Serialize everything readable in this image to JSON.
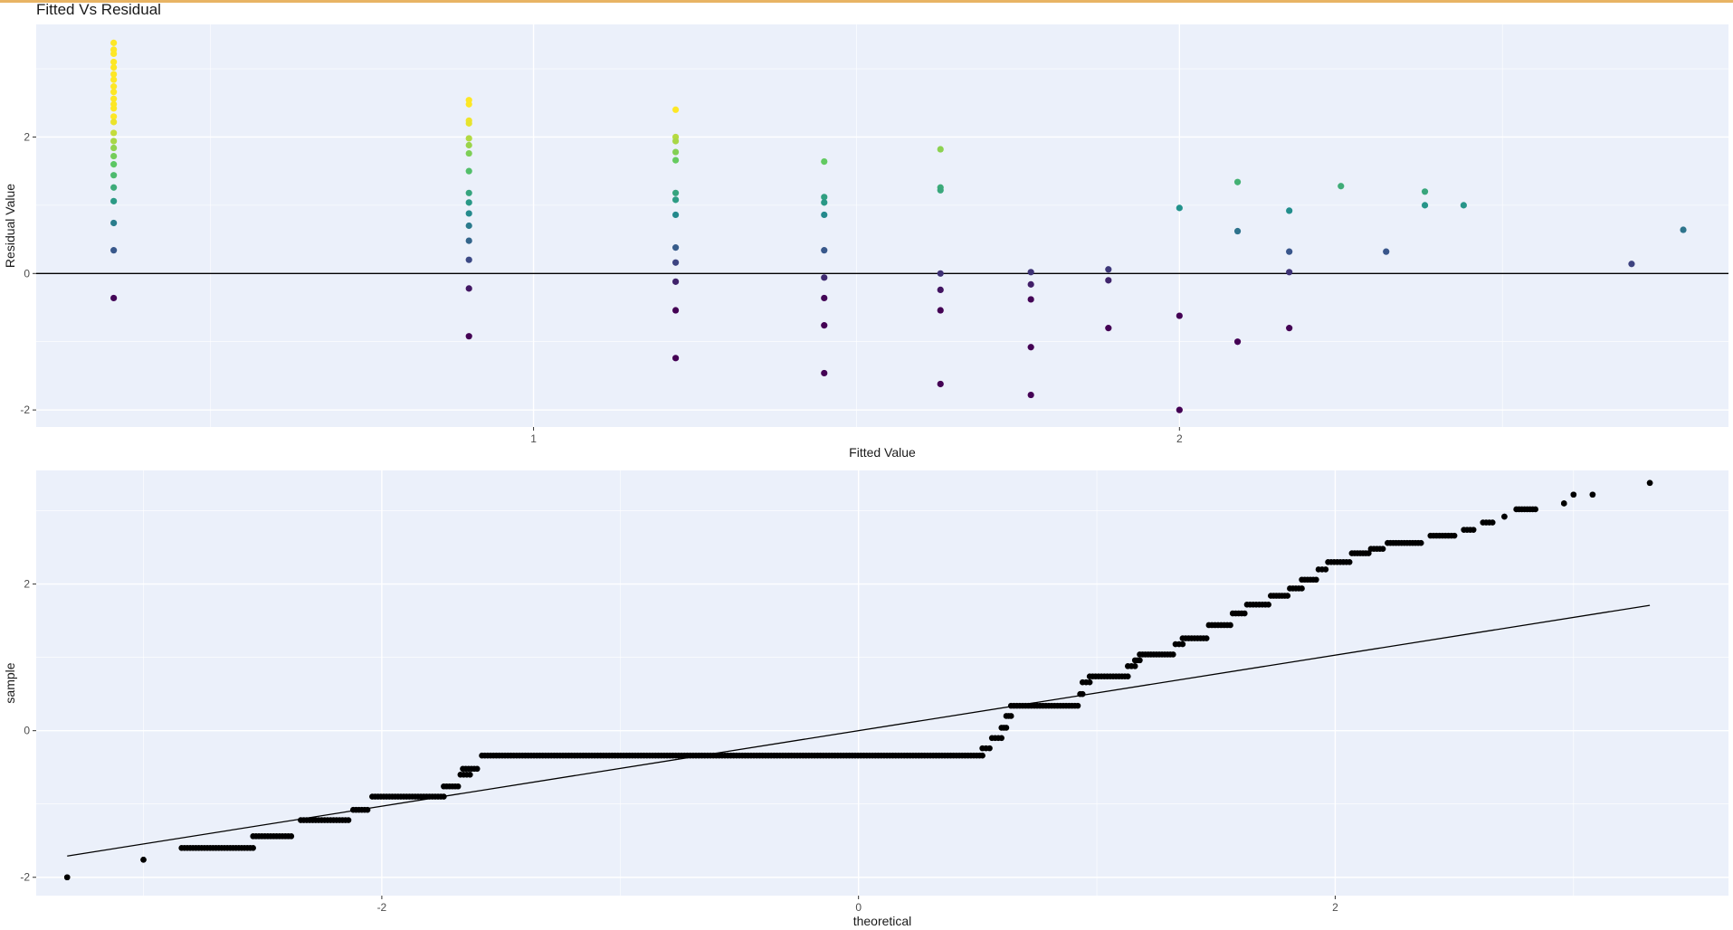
{
  "chart_data": [
    {
      "type": "scatter",
      "title": "Fitted Vs Residual",
      "xlabel": "Fitted Value",
      "ylabel": "Residual Value",
      "xlim": [
        0.23,
        2.85
      ],
      "ylim": [
        -2.25,
        3.65
      ],
      "x_ticks": [
        1,
        2
      ],
      "x_ticklabels": [
        "1",
        "2"
      ],
      "y_ticks": [
        -2,
        0,
        2
      ],
      "y_ticklabels": [
        "-2",
        "0",
        "2"
      ],
      "hline": 0,
      "grid": true,
      "background": "#ebf0fa",
      "colors": {
        "positive_high": "#fde725",
        "mid": "#5ec962",
        "teal": "#21918c",
        "low": "#440154",
        "reference_line": "#000000"
      },
      "points": [
        {
          "x": 0.35,
          "y": 3.38
        },
        {
          "x": 0.35,
          "y": 3.28
        },
        {
          "x": 0.35,
          "y": 3.22
        },
        {
          "x": 0.35,
          "y": 3.1
        },
        {
          "x": 0.35,
          "y": 3.02
        },
        {
          "x": 0.35,
          "y": 2.92
        },
        {
          "x": 0.35,
          "y": 2.84
        },
        {
          "x": 0.35,
          "y": 2.74
        },
        {
          "x": 0.35,
          "y": 2.66
        },
        {
          "x": 0.35,
          "y": 2.56
        },
        {
          "x": 0.35,
          "y": 2.48
        },
        {
          "x": 0.35,
          "y": 2.42
        },
        {
          "x": 0.35,
          "y": 2.3
        },
        {
          "x": 0.35,
          "y": 2.22
        },
        {
          "x": 0.35,
          "y": 2.06
        },
        {
          "x": 0.35,
          "y": 1.94
        },
        {
          "x": 0.35,
          "y": 1.84
        },
        {
          "x": 0.35,
          "y": 1.72
        },
        {
          "x": 0.35,
          "y": 1.6
        },
        {
          "x": 0.35,
          "y": 1.44
        },
        {
          "x": 0.35,
          "y": 1.26
        },
        {
          "x": 0.35,
          "y": 1.06
        },
        {
          "x": 0.35,
          "y": 0.74
        },
        {
          "x": 0.35,
          "y": 0.34
        },
        {
          "x": 0.35,
          "y": -0.36
        },
        {
          "x": 0.9,
          "y": 2.54
        },
        {
          "x": 0.9,
          "y": 2.48
        },
        {
          "x": 0.9,
          "y": 2.24
        },
        {
          "x": 0.9,
          "y": 2.2
        },
        {
          "x": 0.9,
          "y": 1.98
        },
        {
          "x": 0.9,
          "y": 1.88
        },
        {
          "x": 0.9,
          "y": 1.76
        },
        {
          "x": 0.9,
          "y": 1.5
        },
        {
          "x": 0.9,
          "y": 1.18
        },
        {
          "x": 0.9,
          "y": 1.04
        },
        {
          "x": 0.9,
          "y": 0.88
        },
        {
          "x": 0.9,
          "y": 0.7
        },
        {
          "x": 0.9,
          "y": 0.48
        },
        {
          "x": 0.9,
          "y": 0.2
        },
        {
          "x": 0.9,
          "y": -0.22
        },
        {
          "x": 0.9,
          "y": -0.92
        },
        {
          "x": 1.22,
          "y": 2.4
        },
        {
          "x": 1.22,
          "y": 2.0
        },
        {
          "x": 1.22,
          "y": 1.94
        },
        {
          "x": 1.22,
          "y": 1.78
        },
        {
          "x": 1.22,
          "y": 1.66
        },
        {
          "x": 1.22,
          "y": 1.18
        },
        {
          "x": 1.22,
          "y": 1.08
        },
        {
          "x": 1.22,
          "y": 0.86
        },
        {
          "x": 1.22,
          "y": 0.38
        },
        {
          "x": 1.22,
          "y": 0.16
        },
        {
          "x": 1.22,
          "y": -0.12
        },
        {
          "x": 1.22,
          "y": -0.54
        },
        {
          "x": 1.22,
          "y": -1.24
        },
        {
          "x": 1.45,
          "y": 1.64
        },
        {
          "x": 1.45,
          "y": 1.12
        },
        {
          "x": 1.45,
          "y": 1.04
        },
        {
          "x": 1.45,
          "y": 0.86
        },
        {
          "x": 1.45,
          "y": 0.34
        },
        {
          "x": 1.45,
          "y": -0.06
        },
        {
          "x": 1.45,
          "y": -0.36
        },
        {
          "x": 1.45,
          "y": -0.76
        },
        {
          "x": 1.45,
          "y": -1.46
        },
        {
          "x": 1.63,
          "y": 1.82
        },
        {
          "x": 1.63,
          "y": 1.26
        },
        {
          "x": 1.63,
          "y": 1.22
        },
        {
          "x": 1.63,
          "y": 0.0
        },
        {
          "x": 1.63,
          "y": -0.24
        },
        {
          "x": 1.63,
          "y": -0.54
        },
        {
          "x": 1.63,
          "y": -1.62
        },
        {
          "x": 1.77,
          "y": 0.02
        },
        {
          "x": 1.77,
          "y": -0.16
        },
        {
          "x": 1.77,
          "y": -0.38
        },
        {
          "x": 1.77,
          "y": -1.08
        },
        {
          "x": 1.77,
          "y": -1.78
        },
        {
          "x": 1.89,
          "y": 0.06
        },
        {
          "x": 1.89,
          "y": -0.1
        },
        {
          "x": 1.89,
          "y": -0.8
        },
        {
          "x": 2.0,
          "y": 0.96
        },
        {
          "x": 2.0,
          "y": -0.62
        },
        {
          "x": 2.0,
          "y": -2.0
        },
        {
          "x": 2.09,
          "y": 1.34
        },
        {
          "x": 2.09,
          "y": 0.62
        },
        {
          "x": 2.09,
          "y": -1.0
        },
        {
          "x": 2.17,
          "y": 0.92
        },
        {
          "x": 2.17,
          "y": 0.32
        },
        {
          "x": 2.17,
          "y": 0.02
        },
        {
          "x": 2.17,
          "y": -0.8
        },
        {
          "x": 2.25,
          "y": 1.28
        },
        {
          "x": 2.32,
          "y": 0.32
        },
        {
          "x": 2.38,
          "y": 1.2
        },
        {
          "x": 2.38,
          "y": 1.0
        },
        {
          "x": 2.44,
          "y": 1.0
        },
        {
          "x": 2.7,
          "y": 0.14
        },
        {
          "x": 2.78,
          "y": 0.64
        }
      ]
    },
    {
      "type": "scatter",
      "title": "",
      "xlabel": "theoretical",
      "ylabel": "sample",
      "xlim": [
        -3.45,
        3.65
      ],
      "ylim": [
        -2.25,
        3.55
      ],
      "x_ticks": [
        -2,
        0,
        2
      ],
      "x_ticklabels": [
        "-2",
        "0",
        "2"
      ],
      "y_ticks": [
        -2,
        0,
        2
      ],
      "y_ticklabels": [
        "-2",
        "0",
        "2"
      ],
      "grid": true,
      "background": "#ebf0fa",
      "reference_line": {
        "x": [
          -3.32,
          3.32
        ],
        "y": [
          -1.71,
          1.71
        ]
      },
      "steps": [
        {
          "x0": -3.32,
          "x1": -3.32,
          "y": -2.0
        },
        {
          "x0": -3.0,
          "x1": -3.0,
          "y": -1.76
        },
        {
          "x0": -2.84,
          "x1": -2.54,
          "y": -1.6
        },
        {
          "x0": -2.54,
          "x1": -2.38,
          "y": -1.44
        },
        {
          "x0": -2.34,
          "x1": -2.14,
          "y": -1.22
        },
        {
          "x0": -2.12,
          "x1": -2.06,
          "y": -1.08
        },
        {
          "x0": -2.04,
          "x1": -1.74,
          "y": -0.9
        },
        {
          "x0": -1.74,
          "x1": -1.68,
          "y": -0.76
        },
        {
          "x0": -1.67,
          "x1": -1.63,
          "y": -0.6
        },
        {
          "x0": -1.66,
          "x1": -1.6,
          "y": -0.52
        },
        {
          "x0": -1.58,
          "x1": 0.52,
          "y": -0.34
        },
        {
          "x0": 0.52,
          "x1": 0.55,
          "y": -0.24
        },
        {
          "x0": 0.56,
          "x1": 0.6,
          "y": -0.1
        },
        {
          "x0": 0.6,
          "x1": 0.62,
          "y": 0.04
        },
        {
          "x0": 0.62,
          "x1": 0.64,
          "y": 0.2
        },
        {
          "x0": 0.64,
          "x1": 0.92,
          "y": 0.34
        },
        {
          "x0": 0.93,
          "x1": 0.94,
          "y": 0.5
        },
        {
          "x0": 0.94,
          "x1": 0.97,
          "y": 0.66
        },
        {
          "x0": 0.97,
          "x1": 1.13,
          "y": 0.74
        },
        {
          "x0": 1.13,
          "x1": 1.16,
          "y": 0.88
        },
        {
          "x0": 1.16,
          "x1": 1.18,
          "y": 0.96
        },
        {
          "x0": 1.18,
          "x1": 1.32,
          "y": 1.04
        },
        {
          "x0": 1.33,
          "x1": 1.36,
          "y": 1.18
        },
        {
          "x0": 1.36,
          "x1": 1.46,
          "y": 1.26
        },
        {
          "x0": 1.47,
          "x1": 1.56,
          "y": 1.44
        },
        {
          "x0": 1.57,
          "x1": 1.62,
          "y": 1.6
        },
        {
          "x0": 1.63,
          "x1": 1.72,
          "y": 1.72
        },
        {
          "x0": 1.73,
          "x1": 1.8,
          "y": 1.84
        },
        {
          "x0": 1.81,
          "x1": 1.86,
          "y": 1.94
        },
        {
          "x0": 1.86,
          "x1": 1.92,
          "y": 2.06
        },
        {
          "x0": 1.93,
          "x1": 1.96,
          "y": 2.2
        },
        {
          "x0": 1.97,
          "x1": 2.06,
          "y": 2.3
        },
        {
          "x0": 2.07,
          "x1": 2.14,
          "y": 2.42
        },
        {
          "x0": 2.15,
          "x1": 2.2,
          "y": 2.48
        },
        {
          "x0": 2.22,
          "x1": 2.36,
          "y": 2.56
        },
        {
          "x0": 2.4,
          "x1": 2.5,
          "y": 2.66
        },
        {
          "x0": 2.54,
          "x1": 2.58,
          "y": 2.74
        },
        {
          "x0": 2.62,
          "x1": 2.66,
          "y": 2.84
        },
        {
          "x0": 2.71,
          "x1": 2.71,
          "y": 2.92
        },
        {
          "x0": 2.76,
          "x1": 2.84,
          "y": 3.02
        },
        {
          "x0": 2.96,
          "x1": 2.96,
          "y": 3.1
        },
        {
          "x0": 3.08,
          "x1": 3.08,
          "y": 3.22
        },
        {
          "x0": 3.0,
          "x1": 3.0,
          "y": 3.22
        },
        {
          "x0": 3.32,
          "x1": 3.32,
          "y": 3.38
        }
      ]
    }
  ]
}
